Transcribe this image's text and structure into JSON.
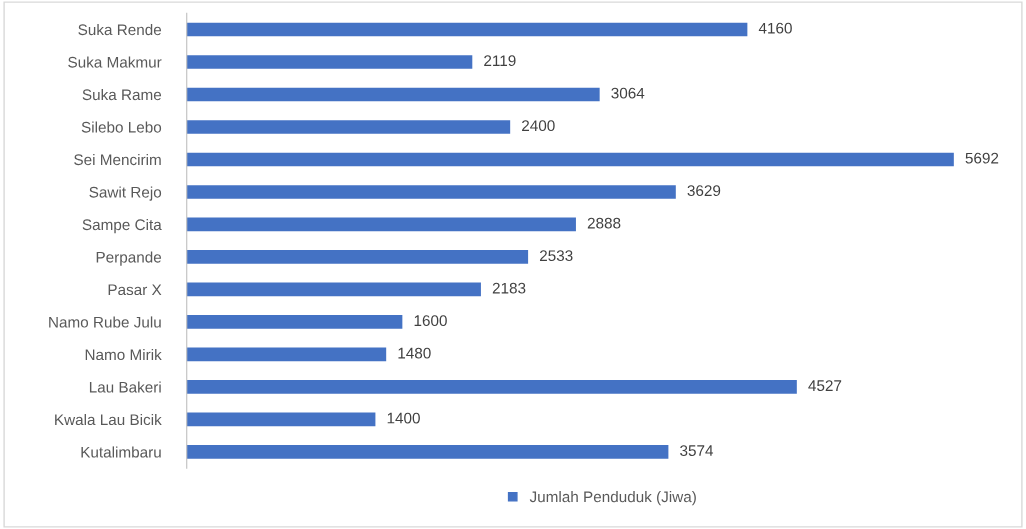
{
  "chart_data": {
    "type": "bar",
    "orientation": "horizontal",
    "categories": [
      "Suka Rende",
      "Suka Makmur",
      "Suka Rame",
      "Silebo Lebo",
      "Sei Mencirim",
      "Sawit Rejo",
      "Sampe Cita",
      "Perpande",
      "Pasar X",
      "Namo Rube Julu",
      "Namo Mirik",
      "Lau Bakeri",
      "Kwala Lau Bicik",
      "Kutalimbaru"
    ],
    "series": [
      {
        "name": "Jumlah Penduduk (Jiwa)",
        "color": "#4472c4",
        "values": [
          4160,
          2119,
          3064,
          2400,
          5692,
          3629,
          2888,
          2533,
          2183,
          1600,
          1480,
          4527,
          1400,
          3574
        ]
      }
    ],
    "data_labels": true,
    "legend": "bottom",
    "grid": false,
    "tick_labels": "y"
  }
}
